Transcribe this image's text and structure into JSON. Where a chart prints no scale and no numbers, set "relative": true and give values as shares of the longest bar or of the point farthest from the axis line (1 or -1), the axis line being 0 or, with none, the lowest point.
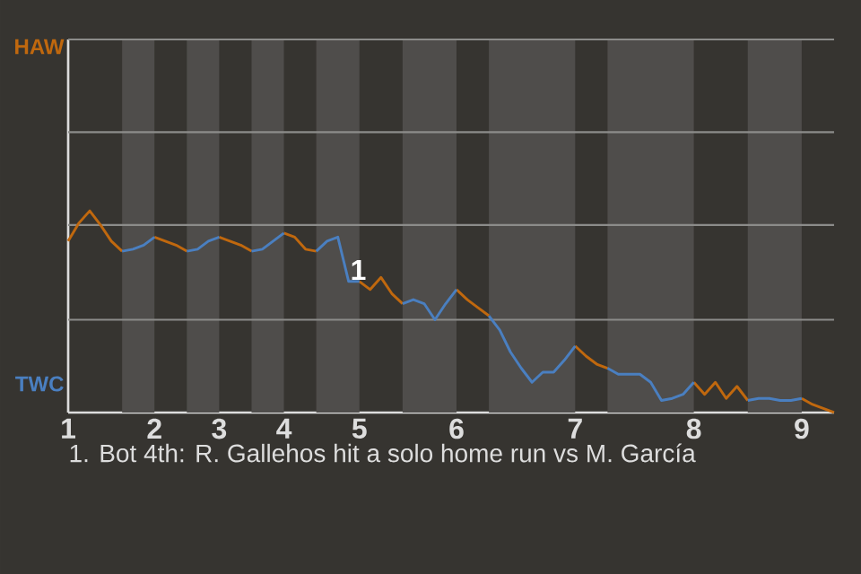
{
  "chart_data": {
    "type": "line",
    "relative": true,
    "categories": [
      "1",
      null,
      null,
      null,
      null,
      null,
      null,
      null,
      "2",
      null,
      null,
      null,
      null,
      null,
      "3",
      null,
      null,
      null,
      null,
      null,
      "4",
      null,
      null,
      null,
      null,
      null,
      null,
      "5",
      null,
      null,
      null,
      null,
      null,
      null,
      null,
      null,
      "6",
      null,
      null,
      null,
      null,
      null,
      null,
      null,
      null,
      null,
      null,
      "7",
      null,
      null,
      null,
      null,
      null,
      null,
      null,
      null,
      null,
      null,
      "8",
      null,
      null,
      null,
      null,
      null,
      null,
      null,
      null,
      null,
      "9",
      null,
      null,
      null
    ],
    "series": [
      {
        "name": "HAW",
        "color": "#c0680e",
        "values": [
          0.85,
          0.94,
          1,
          0.93,
          0.85,
          0.8,
          null,
          null,
          0.87,
          0.85,
          0.83,
          0.8,
          null,
          null,
          0.87,
          0.85,
          0.83,
          0.8,
          null,
          null,
          0.89,
          0.87,
          0.81,
          0.8,
          null,
          null,
          null,
          0.65,
          0.61,
          0.67,
          0.59,
          0.54,
          null,
          null,
          null,
          null,
          0.61,
          0.56,
          0.52,
          0.48,
          null,
          null,
          null,
          null,
          null,
          null,
          null,
          0.33,
          0.28,
          0.24,
          0.22,
          null,
          null,
          null,
          null,
          null,
          null,
          null,
          0.15,
          0.09,
          0.15,
          0.07,
          0.13,
          0.06,
          null,
          null,
          null,
          null,
          0.07,
          0.04,
          0.02,
          0
        ]
      },
      {
        "name": "TWC",
        "color": "#4a7fc0",
        "values": [
          null,
          null,
          null,
          null,
          null,
          0.8,
          0.81,
          0.83,
          0.87,
          null,
          null,
          0.8,
          0.81,
          0.85,
          0.87,
          null,
          null,
          0.8,
          0.81,
          0.85,
          0.89,
          null,
          null,
          0.8,
          0.85,
          0.87,
          0.65,
          0.65,
          null,
          null,
          null,
          0.54,
          0.56,
          0.54,
          0.46,
          0.54,
          0.61,
          null,
          null,
          0.48,
          0.41,
          0.3,
          0.22,
          0.15,
          0.2,
          0.2,
          0.26,
          0.33,
          null,
          null,
          0.22,
          0.19,
          0.19,
          0.19,
          0.15,
          0.06,
          0.07,
          0.09,
          0.15,
          null,
          null,
          null,
          null,
          0.06,
          0.07,
          0.07,
          0.06,
          0.06,
          0.07,
          null,
          null,
          null
        ]
      }
    ],
    "ref_lines": [
      {
        "axis": "y",
        "value": 0.46,
        "color": "#8c8c8a"
      },
      {
        "axis": "y",
        "value": 0.93,
        "color": "#8c8c8a"
      },
      {
        "axis": "y",
        "value": 1.39,
        "color": "#8c8c8a"
      },
      {
        "axis": "y",
        "value": 1.85,
        "color": "#8c8c8a"
      }
    ],
    "annotations": [
      {
        "text": "1",
        "y": 0.65
      },
      "1. Bot 4th: R. Gallehos hit a solo home run vs M. García"
    ]
  }
}
